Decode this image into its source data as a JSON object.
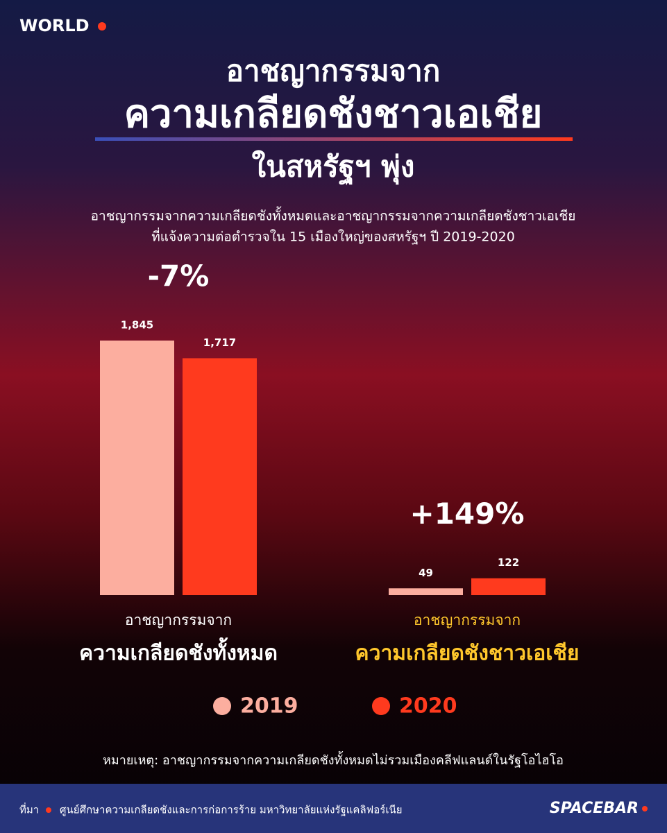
{
  "header": {
    "section": "WORLD"
  },
  "chart_data": {
    "type": "bar",
    "title": [
      "อาชญากรรมจาก",
      "ความเกลียดชังชาวเอเชีย",
      "ในสหรัฐฯ พุ่ง"
    ],
    "subtitle": [
      "อาชญากรรมจากความเกลียดชังทั้งหมดและอาชญากรรมจากความเกลียดชังชาวเอเชีย",
      "ที่แจ้งความต่อตำรวจใน 15 เมืองใหญ่ของสหรัฐฯ ปี 2019-2020"
    ],
    "categories": [
      [
        "อาชญากรรมจาก",
        "ความเกลียดชังทั้งหมด"
      ],
      [
        "อาชญากรรมจาก",
        "ความเกลียดชังชาวเอเชีย"
      ]
    ],
    "category_colors": [
      "#ffffff",
      "#ffc72c"
    ],
    "annotations": [
      "-7%",
      "+149%"
    ],
    "series": [
      {
        "name": "2019",
        "color": "#fcae9f",
        "values": [
          1845,
          49
        ],
        "value_labels": [
          "1,845",
          "49"
        ]
      },
      {
        "name": "2020",
        "color": "#ff3a1e",
        "values": [
          1717,
          122
        ],
        "value_labels": [
          "1,717",
          "122"
        ]
      }
    ]
  },
  "note": "หมายเหตุ: อาชญากรรมจากความเกลียดชังทั้งหมดไม่รวมเมืองคลีฟแลนด์ในรัฐโอไฮโอ",
  "footer": {
    "source_label": "ที่มา",
    "source": "ศูนย์ศึกษาความเกลียดชังและการก่อการร้าย มหาวิทยาลัยแห่งรัฐแคลิฟอร์เนีย",
    "brand": "SPACEBAR"
  }
}
